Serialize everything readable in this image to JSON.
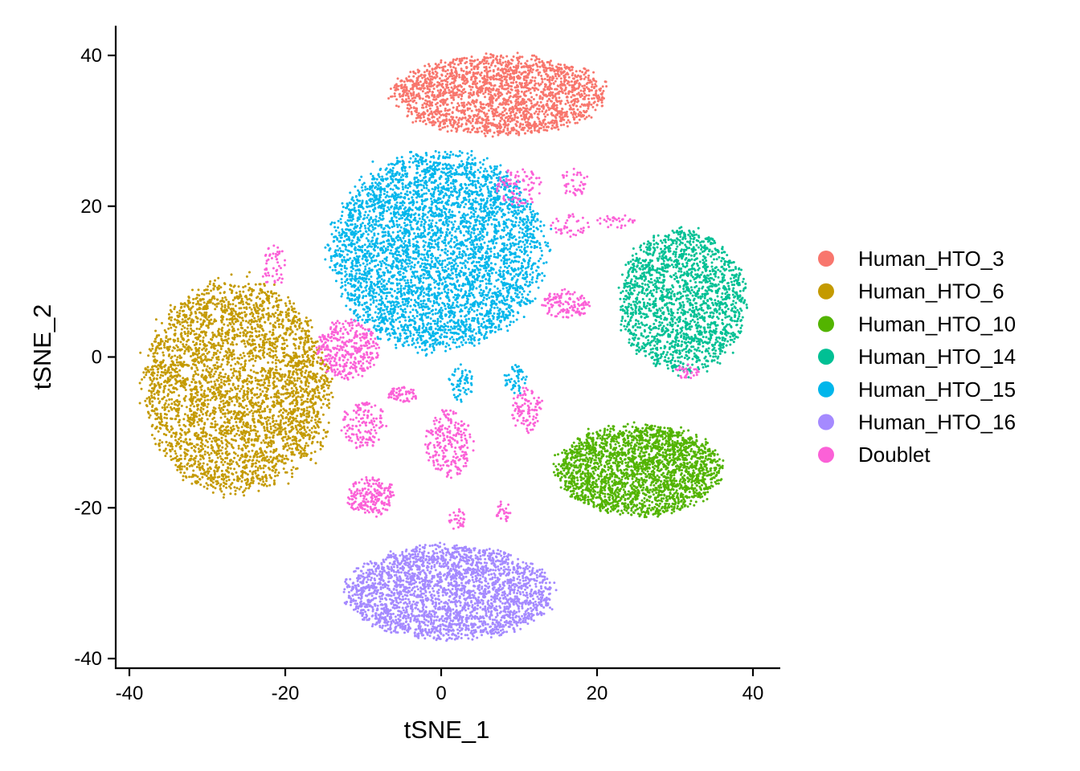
{
  "chart_data": {
    "type": "scatter",
    "title": "",
    "xlabel": "tSNE_1",
    "ylabel": "tSNE_2",
    "xlim": [
      -42,
      43
    ],
    "ylim": [
      -42,
      44
    ],
    "x_ticks": [
      -40,
      -20,
      0,
      20,
      40
    ],
    "y_ticks": [
      -40,
      -20,
      0,
      20,
      40
    ],
    "x_tick_labels": [
      "-40",
      "-20",
      "0",
      "20",
      "40"
    ],
    "y_tick_labels": [
      "-40",
      "-20",
      "0",
      "20",
      "40"
    ],
    "grid": false,
    "legend_position": "right",
    "series": [
      {
        "name": "Human_HTO_3",
        "color": "#F8766D",
        "clusters": [
          {
            "x": [
              -6,
              21
            ],
            "y": [
              29.5,
              40
            ],
            "n": 2100
          }
        ]
      },
      {
        "name": "Human_HTO_6",
        "color": "#C49A00",
        "clusters": [
          {
            "x": [
              -38,
              -15
            ],
            "y": [
              -18,
              10
            ],
            "n": 3400
          },
          {
            "x": [
              -20,
              -14
            ],
            "y": [
              -14,
              3
            ],
            "n": 180
          }
        ]
      },
      {
        "name": "Human_HTO_10",
        "color": "#53B400",
        "clusters": [
          {
            "x": [
              15,
              36
            ],
            "y": [
              -21,
              -9
            ],
            "n": 2300
          }
        ]
      },
      {
        "name": "Human_HTO_14",
        "color": "#00C094",
        "clusters": [
          {
            "x": [
              23,
              39
            ],
            "y": [
              -2,
              17
            ],
            "n": 1800
          }
        ]
      },
      {
        "name": "Human_HTO_15",
        "color": "#00B6EB",
        "clusters": [
          {
            "x": [
              -14,
              13
            ],
            "y": [
              1,
              27
            ],
            "n": 4200
          },
          {
            "x": [
              1,
              4
            ],
            "y": [
              -6,
              -1
            ],
            "n": 60
          },
          {
            "x": [
              8,
              11
            ],
            "y": [
              -5,
              -1
            ],
            "n": 50
          }
        ]
      },
      {
        "name": "Human_HTO_16",
        "color": "#A58AFF",
        "clusters": [
          {
            "x": [
              -12,
              14
            ],
            "y": [
              -37.5,
              -25
            ],
            "n": 2600
          }
        ]
      },
      {
        "name": "Doublet",
        "color": "#FB61D7",
        "clusters": [
          {
            "x": [
              -16,
              -8
            ],
            "y": [
              -3,
              5
            ],
            "n": 350
          },
          {
            "x": [
              -12,
              -6
            ],
            "y": [
              -21,
              -16
            ],
            "n": 200
          },
          {
            "x": [
              -13,
              -7
            ],
            "y": [
              -12,
              -6
            ],
            "n": 140
          },
          {
            "x": [
              -7,
              -3
            ],
            "y": [
              -6,
              -4
            ],
            "n": 60
          },
          {
            "x": [
              -2,
              4
            ],
            "y": [
              -16,
              -7
            ],
            "n": 230
          },
          {
            "x": [
              9,
              13
            ],
            "y": [
              -10,
              -4
            ],
            "n": 100
          },
          {
            "x": [
              13,
              19
            ],
            "y": [
              5,
              9
            ],
            "n": 120
          },
          {
            "x": [
              7,
              13
            ],
            "y": [
              20,
              25
            ],
            "n": 90
          },
          {
            "x": [
              15,
              19
            ],
            "y": [
              21,
              25
            ],
            "n": 40
          },
          {
            "x": [
              14,
              19
            ],
            "y": [
              16,
              19
            ],
            "n": 40
          },
          {
            "x": [
              20,
              25
            ],
            "y": [
              17,
              19
            ],
            "n": 30
          },
          {
            "x": [
              -23,
              -20
            ],
            "y": [
              9,
              15
            ],
            "n": 50
          },
          {
            "x": [
              30,
              33
            ],
            "y": [
              -3,
              -1
            ],
            "n": 30
          },
          {
            "x": [
              1,
              3
            ],
            "y": [
              -23,
              -20
            ],
            "n": 30
          },
          {
            "x": [
              7,
              9
            ],
            "y": [
              -22,
              -19
            ],
            "n": 25
          }
        ]
      }
    ]
  }
}
